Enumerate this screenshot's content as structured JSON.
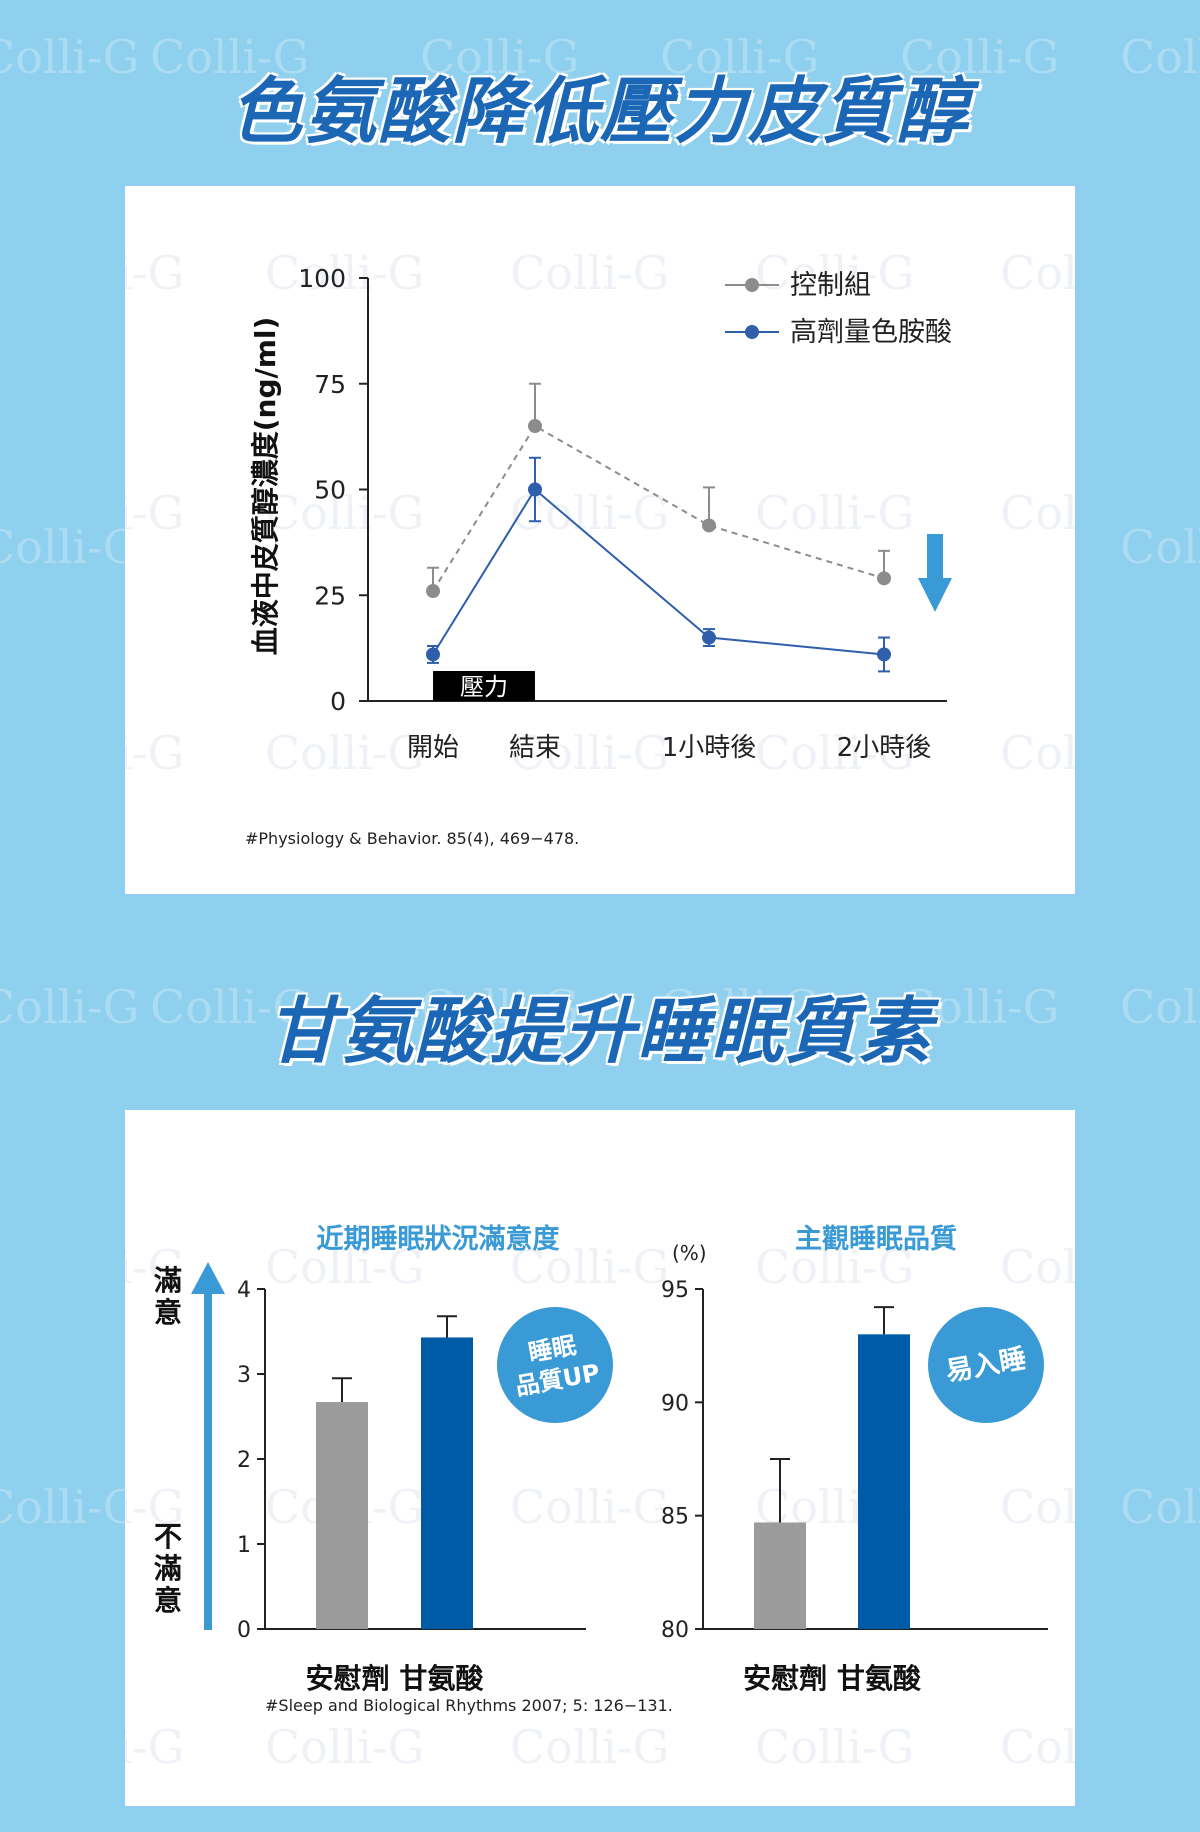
{
  "titles": {
    "tryptophan": "色氨酸降低壓力皮質醇",
    "glycine": "甘氨酸提升睡眠質素"
  },
  "watermark": "Colli-G",
  "colors": {
    "background": "#8fd0ee",
    "title": "#1b67b5",
    "control": "#8c8c8c",
    "treatment": "#2f5fab",
    "bar_blue": "#005ba6",
    "bar_grey": "#9b9b9b",
    "accent": "#3a9ad6"
  },
  "chart1": {
    "ylabel": "血液中皮質醇濃度(ng/ml)",
    "stress_label": "壓力",
    "source": "#Physiology & Behavior. 85(4), 469−478.",
    "legend": [
      "控制組",
      "高劑量色胺酸"
    ]
  },
  "chart2": {
    "left": {
      "title": "近期睡眠狀況滿意度",
      "top_label": "滿意",
      "bottom_label": "不滿意",
      "badge": "睡眠品質UP"
    },
    "right": {
      "title": "主觀睡眠品質",
      "unit": "(%)",
      "badge": "易入睡"
    },
    "source": "#Sleep and Biological Rhythms 2007; 5: 126−131."
  },
  "chart_data": [
    {
      "type": "line",
      "title": "",
      "xlabel": "",
      "ylabel": "血液中皮質醇濃度(ng/ml)",
      "categories": [
        "開始",
        "結束",
        "1小時後",
        "2小時後"
      ],
      "ylim": [
        0,
        100
      ],
      "yticks": [
        0,
        25,
        50,
        75,
        100
      ],
      "series": [
        {
          "name": "控制組",
          "values": [
            26,
            65,
            41.5,
            29
          ],
          "errors": [
            5.5,
            10,
            9,
            6.5
          ],
          "style": "dashed",
          "color": "#8c8c8c"
        },
        {
          "name": "高劑量色胺酸",
          "values": [
            11,
            50,
            15,
            11
          ],
          "errors": [
            2,
            7.5,
            2,
            4
          ],
          "style": "solid",
          "color": "#2f5fab"
        }
      ],
      "trend_arrow": "down",
      "grid": false
    },
    {
      "type": "bar",
      "title": "近期睡眠狀況滿意度",
      "categories": [
        "安慰劑",
        "甘氨酸"
      ],
      "values": [
        2.67,
        3.43
      ],
      "errors": [
        0.28,
        0.25
      ],
      "colors": [
        "#9b9b9b",
        "#005ba6"
      ],
      "ylim": [
        0,
        4
      ],
      "yticks": [
        0,
        1,
        2,
        3,
        4
      ],
      "grid": false
    },
    {
      "type": "bar",
      "title": "主觀睡眠品質",
      "ylabel": "(%)",
      "categories": [
        "安慰劑",
        "甘氨酸"
      ],
      "values": [
        84.7,
        93
      ],
      "errors": [
        2.8,
        1.2
      ],
      "colors": [
        "#9b9b9b",
        "#005ba6"
      ],
      "ylim": [
        80,
        95
      ],
      "yticks": [
        80,
        85,
        90,
        95
      ],
      "grid": false
    }
  ]
}
